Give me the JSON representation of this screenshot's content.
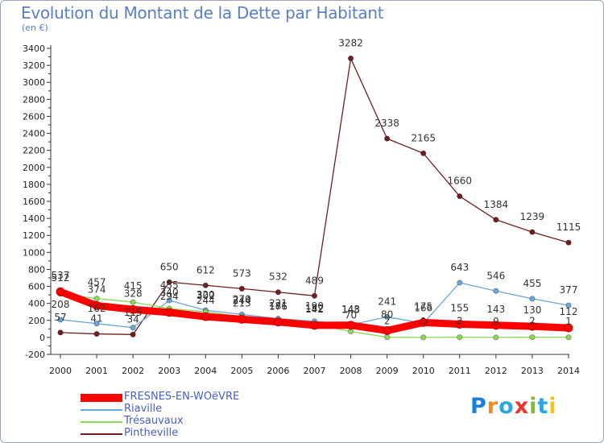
{
  "title": "Evolution du Montant de la Dette par Habitant",
  "unit": "(en €)",
  "logo": {
    "text": "Proxiti",
    "letters": [
      "P",
      "r",
      "o",
      "x",
      "i",
      "t",
      "i"
    ],
    "colors": [
      "#1a7fd8",
      "#f28a1c",
      "#2aa7dd",
      "#e8362c",
      "#7fba32",
      "#2aa7dd",
      "#f2c21c"
    ]
  },
  "chart_data": {
    "type": "line",
    "x": [
      "2000",
      "2001",
      "2002",
      "2003",
      "2004",
      "2005",
      "2006",
      "2007",
      "2008",
      "2009",
      "2010",
      "2011",
      "2012",
      "2013",
      "2014"
    ],
    "ylim": [
      -200,
      3400
    ],
    "yticks": [
      -200,
      0,
      200,
      400,
      600,
      800,
      1000,
      1200,
      1400,
      1600,
      1800,
      2000,
      2200,
      2400,
      2600,
      2800,
      3000,
      3200,
      3400
    ],
    "grid": false,
    "legend": "bottom-left",
    "series": [
      {
        "name": "FRESNES-EN-WOëVRE",
        "color": "#ff0000",
        "values": [
          537,
          374,
          328,
          294,
          244,
          213,
          181,
          142,
          143,
          80,
          175,
          155,
          143,
          130,
          112
        ],
        "labels": [
          "537",
          "374",
          "328",
          "294",
          "244",
          "213",
          "181",
          "142",
          "143",
          "80",
          "175",
          "155",
          "143",
          "130",
          "112"
        ]
      },
      {
        "name": "Riaville",
        "color": "#6aa6d6",
        "values": [
          208,
          162,
          115,
          435,
          320,
          270,
          221,
          190,
          148,
          241,
          166,
          643,
          546,
          455,
          377
        ],
        "labels": [
          "208",
          "162",
          "115",
          "435",
          "320",
          "270",
          "221",
          "190",
          "148",
          "241",
          "166",
          "643",
          "546",
          "455",
          "377"
        ]
      },
      {
        "name": "Trésauvaux",
        "color": "#8cd65a",
        "values": [
          512,
          457,
          415,
          340,
          302,
          244,
          176,
          152,
          70,
          2,
          0,
          2,
          0,
          2,
          1
        ],
        "labels": [
          "512",
          "457",
          "415",
          "340",
          "302",
          "244",
          "176",
          "152",
          "70",
          "2",
          "0",
          "2",
          "0",
          "2",
          "1"
        ]
      },
      {
        "name": "Pintheville",
        "color": "#6e1f1f",
        "values": [
          57,
          41,
          34,
          650,
          612,
          573,
          532,
          489,
          3282,
          2338,
          2165,
          1660,
          1384,
          1239,
          1115
        ],
        "labels": [
          "57",
          "41",
          "34",
          "650",
          "612",
          "573",
          "532",
          "489",
          "3282",
          "2338",
          "2165",
          "1660",
          "1384",
          "1239",
          "1115"
        ]
      }
    ]
  }
}
